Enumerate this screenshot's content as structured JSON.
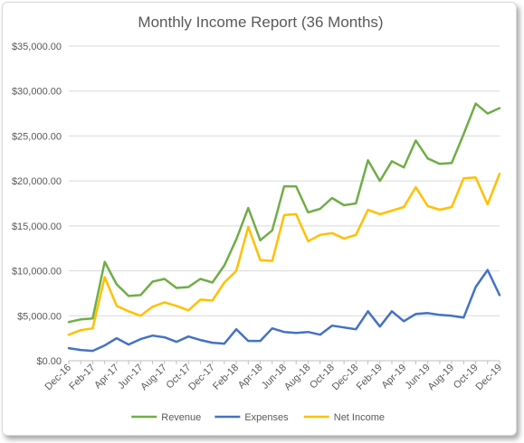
{
  "chart_data": {
    "type": "line",
    "title": "Monthly Income Report (36 Months)",
    "xlabel": "",
    "ylabel": "",
    "ylim": [
      0,
      35000
    ],
    "yticks": [
      "$0.00",
      "$5,000.00",
      "$10,000.00",
      "$15,000.00",
      "$20,000.00",
      "$25,000.00",
      "$30,000.00",
      "$35,000.00"
    ],
    "ytick_values": [
      0,
      5000,
      10000,
      15000,
      20000,
      25000,
      30000,
      35000
    ],
    "grid": true,
    "legend_position": "bottom",
    "categories": [
      "Dec-16",
      "Jan-17",
      "Feb-17",
      "Mar-17",
      "Apr-17",
      "May-17",
      "Jun-17",
      "Jul-17",
      "Aug-17",
      "Sep-17",
      "Oct-17",
      "Nov-17",
      "Dec-17",
      "Jan-18",
      "Feb-18",
      "Mar-18",
      "Apr-18",
      "May-18",
      "Jun-18",
      "Jul-18",
      "Aug-18",
      "Sep-18",
      "Oct-18",
      "Nov-18",
      "Dec-18",
      "Jan-19",
      "Feb-19",
      "Mar-19",
      "Apr-19",
      "May-19",
      "Jun-19",
      "Jul-19",
      "Aug-19",
      "Sep-19",
      "Oct-19",
      "Nov-19",
      "Dec-19"
    ],
    "tick_labels": [
      "Dec-16",
      "Feb-17",
      "Apr-17",
      "Jun-17",
      "Aug-17",
      "Oct-17",
      "Dec-17",
      "Feb-18",
      "Apr-18",
      "Jun-18",
      "Aug-18",
      "Oct-18",
      "Dec-18",
      "Feb-19",
      "Apr-19",
      "Jun-19",
      "Aug-19",
      "Oct-19",
      "Dec-19"
    ],
    "series": [
      {
        "name": "Revenue",
        "color": "#70ad47",
        "values": [
          4300,
          4600,
          4700,
          11000,
          8500,
          7200,
          7300,
          8800,
          9100,
          8100,
          8200,
          9100,
          8700,
          10600,
          13500,
          17000,
          13400,
          14500,
          19400,
          19400,
          16500,
          16900,
          18100,
          17300,
          17500,
          22300,
          20000,
          22200,
          21500,
          24500,
          22500,
          21900,
          22000,
          25200,
          28600,
          27500,
          28100
        ]
      },
      {
        "name": "Expenses",
        "color": "#4472c4",
        "values": [
          1400,
          1200,
          1100,
          1700,
          2500,
          1800,
          2400,
          2800,
          2600,
          2100,
          2700,
          2300,
          2000,
          1900,
          3500,
          2200,
          2200,
          3600,
          3200,
          3100,
          3200,
          2900,
          3900,
          3700,
          3500,
          5500,
          3800,
          5500,
          4400,
          5200,
          5300,
          5100,
          5000,
          4800,
          8200,
          10100,
          7300
        ]
      },
      {
        "name": "Net Income",
        "color": "#ffc000",
        "values": [
          2900,
          3400,
          3600,
          9300,
          6100,
          5500,
          5000,
          6000,
          6500,
          6100,
          5600,
          6800,
          6700,
          8700,
          10000,
          14900,
          11200,
          11100,
          16200,
          16300,
          13300,
          14000,
          14200,
          13600,
          14000,
          16800,
          16300,
          16700,
          17100,
          19300,
          17200,
          16800,
          17100,
          20300,
          20400,
          17400,
          20800
        ]
      }
    ]
  }
}
